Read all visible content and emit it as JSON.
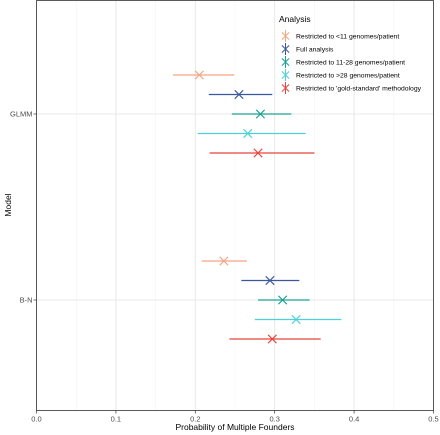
{
  "chart_data": {
    "type": "forest",
    "xlabel": "Probability of Multiple Founders",
    "ylabel": "Model",
    "xlim": [
      0,
      0.5
    ],
    "xticks": [
      0.0,
      0.1,
      0.2,
      0.3,
      0.4,
      0.5
    ],
    "xtick_labels": [
      "0.0",
      "0.1",
      "0.2",
      "0.3",
      "0.4",
      "0.5"
    ],
    "categories": [
      "GLMM",
      "B-N"
    ],
    "grid": true,
    "legend": {
      "title": "Analysis",
      "position": "top-right"
    },
    "series": [
      {
        "name": "Restricted to <11 genomes/patient",
        "color": "#F4A582",
        "points": [
          {
            "model": "GLMM",
            "estimate": 0.205,
            "lower": 0.172,
            "upper": 0.249
          },
          {
            "model": "B-N",
            "estimate": 0.236,
            "lower": 0.208,
            "upper": 0.265
          }
        ]
      },
      {
        "name": "Full analysis",
        "color": "#3A56A0",
        "points": [
          {
            "model": "GLMM",
            "estimate": 0.255,
            "lower": 0.217,
            "upper": 0.297
          },
          {
            "model": "B-N",
            "estimate": 0.294,
            "lower": 0.258,
            "upper": 0.331
          }
        ]
      },
      {
        "name": "Restricted to 11-28 genomes/patient",
        "color": "#1AA392",
        "points": [
          {
            "model": "GLMM",
            "estimate": 0.282,
            "lower": 0.246,
            "upper": 0.321
          },
          {
            "model": "B-N",
            "estimate": 0.31,
            "lower": 0.279,
            "upper": 0.344
          }
        ]
      },
      {
        "name": "Restricted to >28 genomes/patient",
        "color": "#4FCFD8",
        "points": [
          {
            "model": "GLMM",
            "estimate": 0.266,
            "lower": 0.203,
            "upper": 0.339
          },
          {
            "model": "B-N",
            "estimate": 0.327,
            "lower": 0.275,
            "upper": 0.384
          }
        ]
      },
      {
        "name": "Restricted to 'gold-standard' methodology",
        "color": "#E8453C",
        "points": [
          {
            "model": "GLMM",
            "estimate": 0.279,
            "lower": 0.218,
            "upper": 0.35
          },
          {
            "model": "B-N",
            "estimate": 0.297,
            "lower": 0.243,
            "upper": 0.358
          }
        ]
      }
    ]
  }
}
